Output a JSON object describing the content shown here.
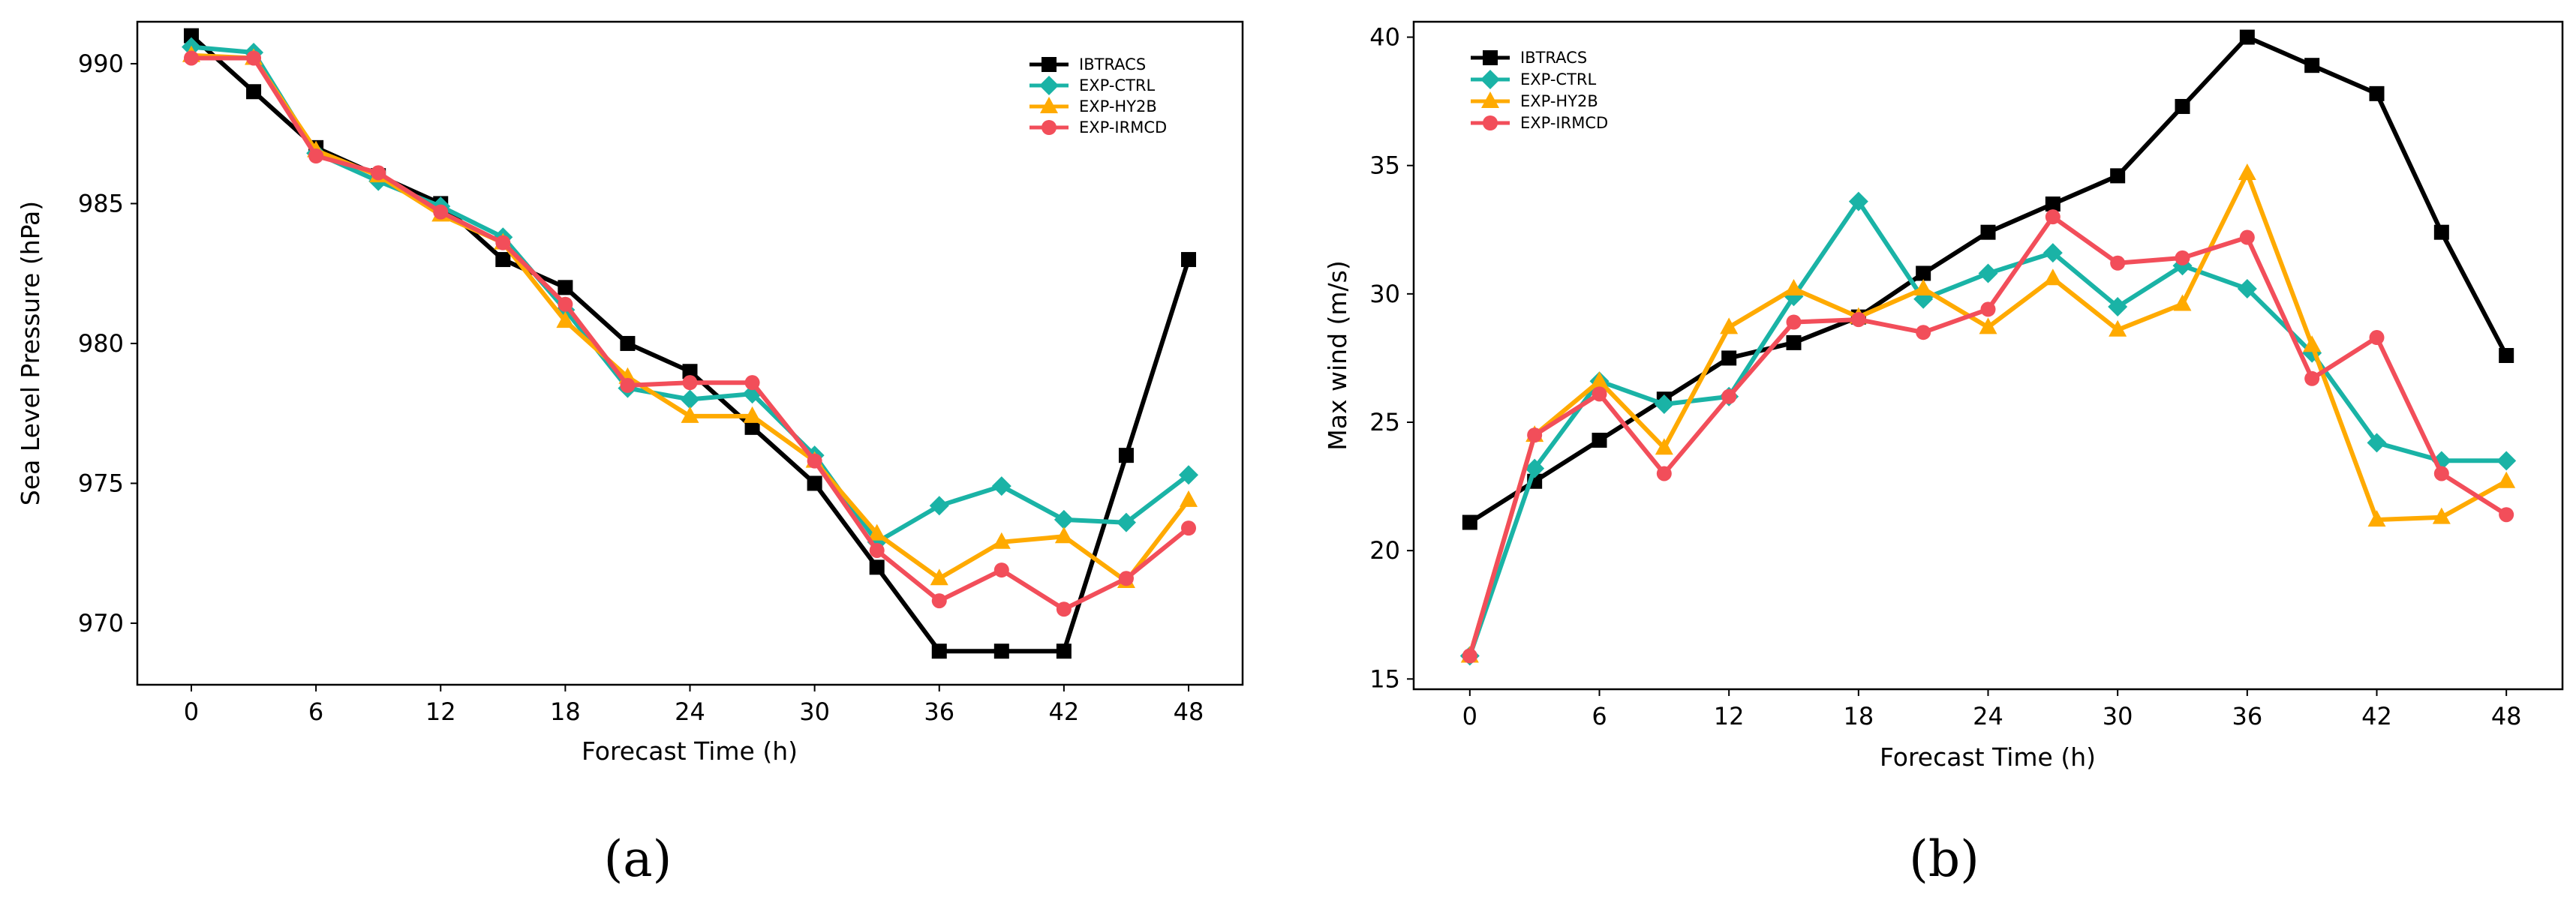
{
  "colors": {
    "IBTRACS": "#000000",
    "EXP-CTRL": "#1ab3a6",
    "EXP-HY2B": "#ffaa00",
    "EXP-IRMCD": "#f24e5a"
  },
  "chart_data": [
    {
      "type": "line",
      "panel": "(a)",
      "title": "",
      "xlabel": "Forecast Time (h)",
      "ylabel": "Sea Level Pressure (hPa)",
      "x": [
        0,
        3,
        6,
        9,
        12,
        15,
        18,
        21,
        24,
        27,
        30,
        33,
        36,
        39,
        42,
        45,
        48
      ],
      "xticks": [
        "0",
        "6",
        "12",
        "18",
        "24",
        "30",
        "36",
        "42",
        "48"
      ],
      "yticks": [
        "970",
        "975",
        "980",
        "985",
        "990"
      ],
      "xlim": [
        -2.6,
        50.6
      ],
      "ylim": [
        967.8,
        991.5
      ],
      "legend_position": "top-right",
      "series": [
        {
          "name": "IBTRACS",
          "marker": "square",
          "values": [
            991.0,
            989.0,
            987.0,
            986.0,
            985.0,
            983.0,
            982.0,
            980.0,
            979.0,
            977.0,
            975.0,
            972.0,
            969.0,
            969.0,
            969.0,
            976.0,
            983.0
          ]
        },
        {
          "name": "EXP-CTRL",
          "marker": "diamond",
          "values": [
            990.6,
            990.4,
            986.8,
            985.8,
            984.9,
            983.8,
            981.2,
            978.4,
            978.0,
            978.2,
            976.0,
            972.9,
            974.2,
            974.9,
            973.7,
            973.6,
            975.3
          ]
        },
        {
          "name": "EXP-HY2B",
          "marker": "triangle",
          "values": [
            990.3,
            990.2,
            986.9,
            986.0,
            984.6,
            983.6,
            980.8,
            978.8,
            977.4,
            977.4,
            975.8,
            973.2,
            971.6,
            972.9,
            973.1,
            971.5,
            974.4
          ]
        },
        {
          "name": "EXP-IRMCD",
          "marker": "circle",
          "values": [
            990.2,
            990.2,
            986.7,
            986.1,
            984.7,
            983.6,
            981.4,
            978.5,
            978.6,
            978.6,
            975.8,
            972.6,
            970.8,
            971.9,
            970.5,
            971.6,
            973.4
          ]
        }
      ]
    },
    {
      "type": "line",
      "panel": "(b)",
      "title": "",
      "xlabel": "Forecast Time (h)",
      "ylabel": "Max wind (m/s)",
      "x": [
        0,
        3,
        6,
        9,
        12,
        15,
        18,
        21,
        24,
        27,
        30,
        33,
        36,
        39,
        42,
        45,
        48
      ],
      "xticks": [
        "0",
        "6",
        "12",
        "18",
        "24",
        "30",
        "36",
        "42",
        "48"
      ],
      "yticks": [
        "15",
        "20",
        "25",
        "30",
        "35",
        "40"
      ],
      "xlim": [
        -2.6,
        50.6
      ],
      "ylim": [
        14.6,
        40.6
      ],
      "legend_position": "top-left",
      "series": [
        {
          "name": "IBTRACS",
          "marker": "square",
          "values": [
            21.1,
            22.7,
            24.3,
            25.9,
            27.5,
            28.1,
            29.1,
            30.8,
            32.4,
            33.5,
            34.6,
            37.3,
            40.0,
            38.9,
            37.8,
            32.4,
            27.6
          ]
        },
        {
          "name": "EXP-CTRL",
          "marker": "diamond",
          "values": [
            15.9,
            23.2,
            26.6,
            25.7,
            26.0,
            29.9,
            33.6,
            29.8,
            30.8,
            31.6,
            29.5,
            31.1,
            30.2,
            27.7,
            24.2,
            23.5,
            23.5
          ]
        },
        {
          "name": "EXP-HY2B",
          "marker": "triangle",
          "values": [
            15.9,
            24.5,
            26.6,
            24.0,
            28.7,
            30.2,
            29.1,
            30.2,
            28.7,
            30.6,
            28.6,
            29.6,
            34.7,
            28.0,
            21.2,
            21.3,
            22.7
          ]
        },
        {
          "name": "EXP-IRMCD",
          "marker": "circle",
          "values": [
            15.9,
            24.5,
            26.1,
            23.0,
            26.0,
            28.9,
            29.0,
            28.5,
            29.4,
            33.0,
            31.2,
            31.4,
            32.2,
            26.7,
            28.3,
            23.0,
            21.4
          ]
        }
      ]
    }
  ]
}
